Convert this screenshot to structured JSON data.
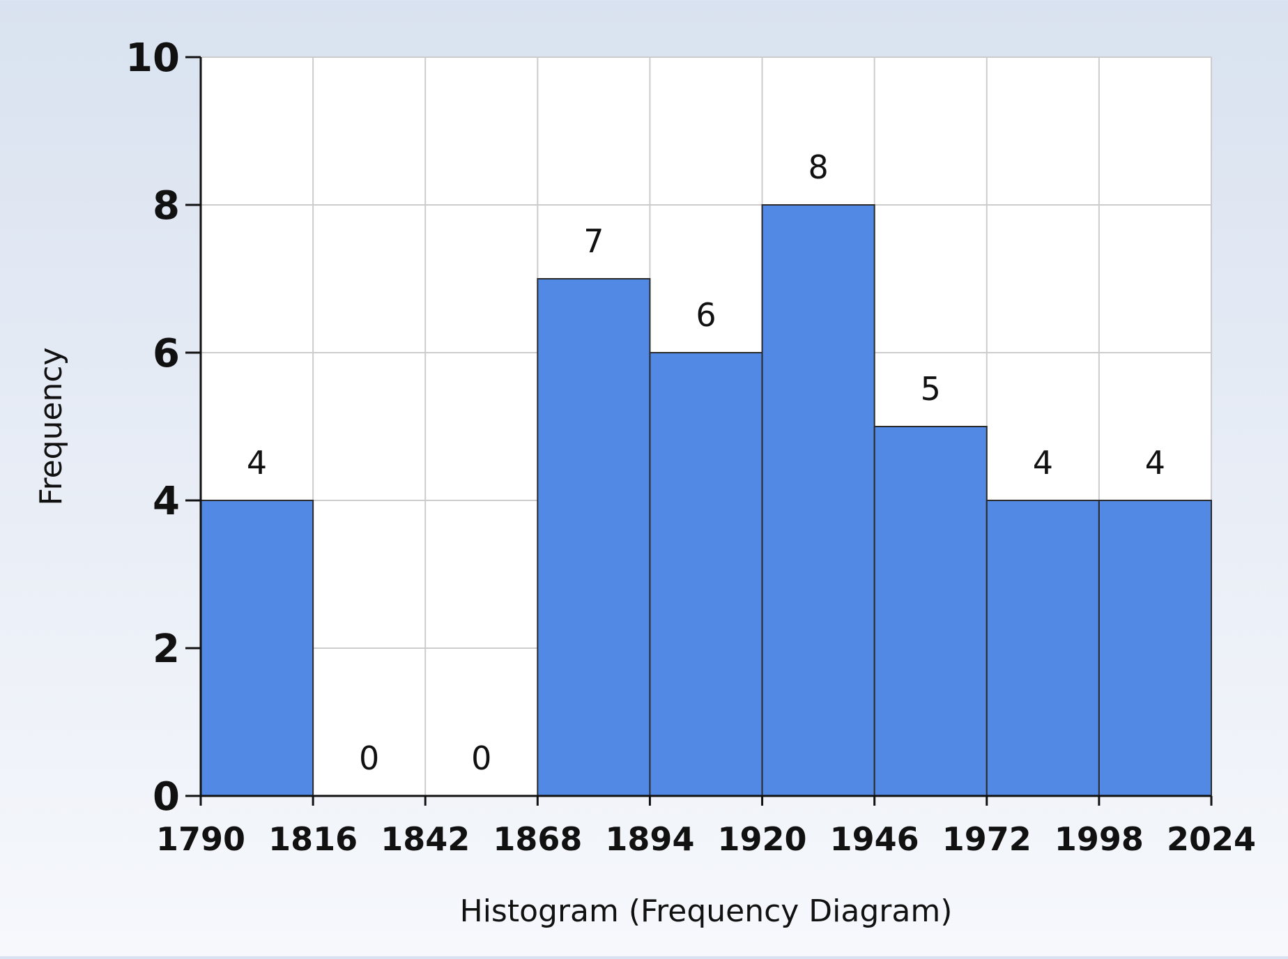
{
  "chart_data": {
    "type": "bar",
    "subtype": "histogram",
    "bin_edges": [
      1790,
      1816,
      1842,
      1868,
      1894,
      1920,
      1946,
      1972,
      1998,
      2024
    ],
    "x_tick_labels": [
      "1790",
      "1816",
      "1842",
      "1868",
      "1894",
      "1920",
      "1946",
      "1972",
      "1998",
      "2024"
    ],
    "values": [
      4,
      0,
      0,
      7,
      6,
      8,
      5,
      4,
      4
    ],
    "data_labels": [
      "4",
      "0",
      "0",
      "7",
      "6",
      "8",
      "5",
      "4",
      "4"
    ],
    "y_ticks": [
      0,
      2,
      4,
      6,
      8,
      10
    ],
    "y_tick_labels": [
      "0",
      "2",
      "4",
      "6",
      "8",
      "10"
    ],
    "ylim": [
      0,
      10
    ],
    "xlim": [
      1790,
      2024
    ],
    "xlabel": "Histogram (Frequency Diagram)",
    "ylabel": "Frequency",
    "title": "",
    "grid": true,
    "colors": {
      "bar_fill": "#5289e4",
      "bar_stroke": "#2a2a2a",
      "grid": "#cccccc",
      "plot_bg": "#ffffff",
      "axis": "#111111"
    }
  }
}
